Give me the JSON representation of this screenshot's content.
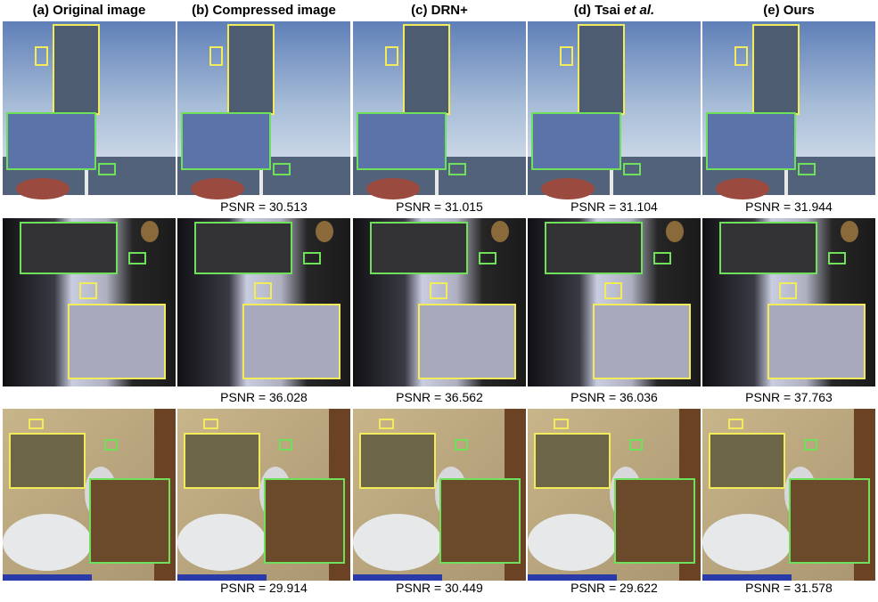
{
  "columns": [
    {
      "label": "(a) Original image"
    },
    {
      "label": "(b) Compressed image"
    },
    {
      "label": "(c) DRN+"
    },
    {
      "label": "(d) Tsai",
      "label_italic": "et al."
    },
    {
      "label": "(e) Ours"
    }
  ],
  "rows": [
    {
      "psnr": [
        null,
        "PSNR = 30.513",
        "PSNR = 31.015",
        "PSNR = 31.104",
        "PSNR = 31.944"
      ]
    },
    {
      "psnr": [
        null,
        "PSNR = 36.028",
        "PSNR = 36.562",
        "PSNR = 36.036",
        "PSNR = 37.763"
      ]
    },
    {
      "psnr": [
        null,
        "PSNR = 29.914",
        "PSNR = 30.449",
        "PSNR = 29.622",
        "PSNR = 31.578"
      ]
    }
  ]
}
